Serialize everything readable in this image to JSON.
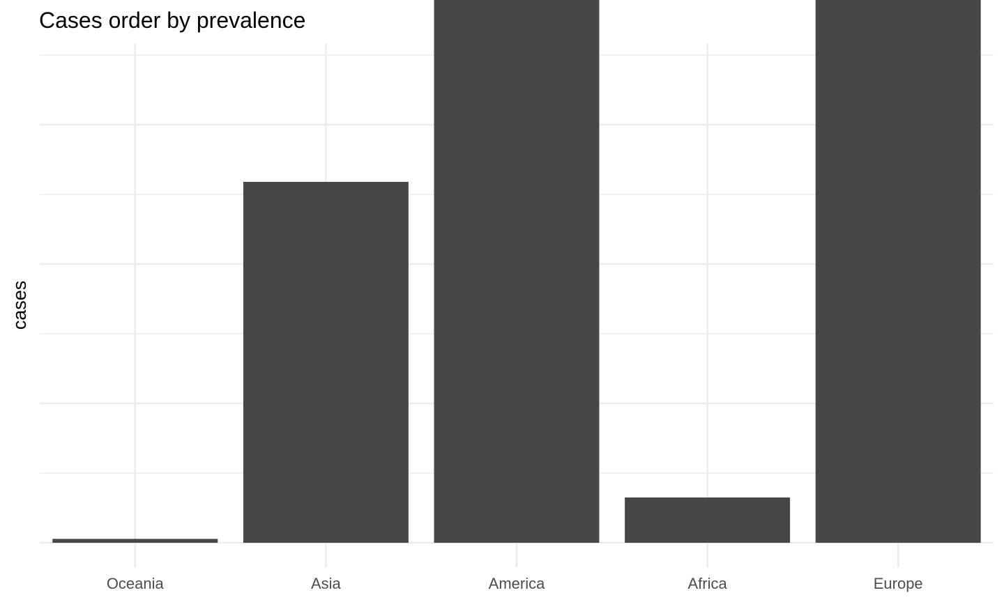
{
  "chart_data": {
    "type": "bar",
    "title": "Cases order by prevalence",
    "xlabel": "",
    "ylabel": "cases",
    "categories": [
      "Oceania",
      "Asia",
      "America",
      "Africa",
      "Europe"
    ],
    "values": [
      0.28,
      25.9,
      68.3,
      3.25,
      58.0
    ],
    "ylim": [
      0,
      70
    ],
    "y_tick_labels_shown": false,
    "grid": true,
    "bar_color": "#474747",
    "grid_color": "#ebebeb",
    "background": "#ffffff"
  }
}
